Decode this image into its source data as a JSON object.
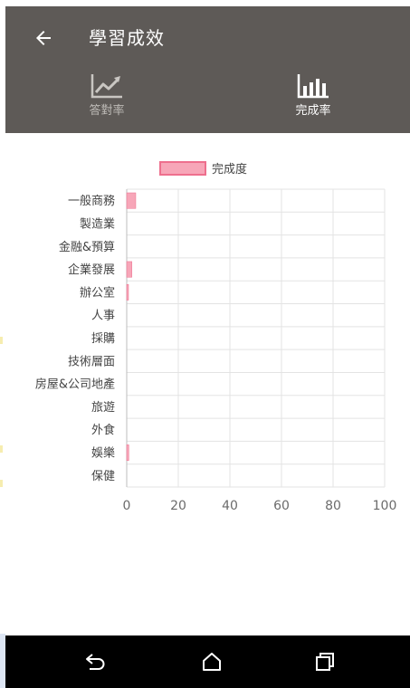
{
  "app": {
    "title": "學習成效"
  },
  "tabs": [
    {
      "label": "答對率",
      "icon": "line-chart-icon",
      "active": false
    },
    {
      "label": "完成率",
      "icon": "bar-chart-icon",
      "active": true
    }
  ],
  "colors": {
    "appbar": "#5e5a57",
    "bar": "#f7a6b8",
    "bar_border": "#ee6f8d",
    "grid": "#e3e3e3",
    "axis_text": "#6b6b6b"
  },
  "chart_data": {
    "type": "bar",
    "orientation": "horizontal",
    "categories": [
      "一般商務",
      "製造業",
      "金融&預算",
      "企業發展",
      "辦公室",
      "人事",
      "採購",
      "技術層面",
      "房屋&公司地產",
      "旅遊",
      "外食",
      "娛樂",
      "保健"
    ],
    "series": [
      {
        "name": "完成度",
        "values": [
          3.5,
          0,
          0,
          2.0,
          0.7,
          0,
          0,
          0,
          0,
          0,
          0,
          0.8,
          0
        ]
      }
    ],
    "xlim": [
      0,
      100
    ],
    "xticks": [
      "0",
      "20",
      "40",
      "60",
      "80",
      "100"
    ],
    "grid": true,
    "legend": "top-center"
  },
  "navbar": {
    "back": "back-nav-icon",
    "home": "home-icon",
    "recents": "recents-icon"
  }
}
